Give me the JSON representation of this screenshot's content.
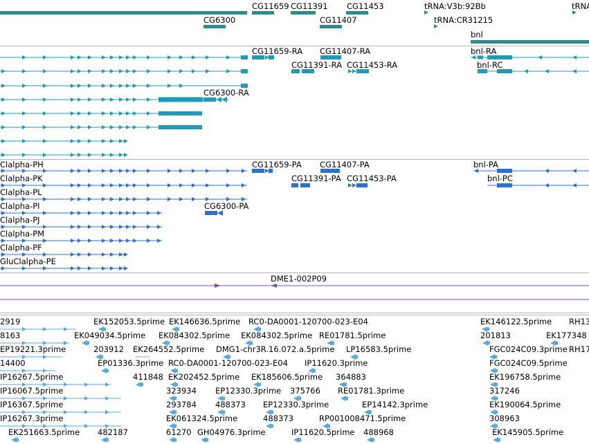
{
  "tracks": {
    "gene_span": {
      "labels": [
        "CG11659",
        "CG11391",
        "CG11453",
        "tRNA:V3b:92Bb",
        "tRNA",
        "CG6300",
        "CG11407",
        "tRNA:CR31215",
        "bnl"
      ]
    },
    "transcripts_rna": {
      "labels": [
        "CG11659-RA",
        "CG11407-RA",
        "bnl-RA",
        "CG11391-RA",
        "CG11453-RA",
        "bnl-RC",
        "CG6300-RA"
      ]
    },
    "proteins": {
      "labels": [
        "Clalpha-PH",
        "CG11659-PA",
        "CG11407-PA",
        "bnl-PA",
        "Clalpha-PK",
        "CG11391-PA",
        "CG11453-PA",
        "bnl-PC",
        "Clalpha-PL",
        "Clalpha-PI",
        "CG6300-PA",
        "Clalpha-PJ",
        "Clalpha-PM",
        "Clalpha-PF",
        "GluClalpha-PE"
      ]
    },
    "clones": {
      "labels": [
        "DME1-002P09"
      ]
    },
    "ests": {
      "labels": [
        "2919",
        "EK152053.5prime",
        "EK146636.5prime",
        "RC0-DA0001-120700-023-E04",
        "EK146122.5prime",
        "RH13",
        "8163",
        "EK049034.5prime",
        "EK084302.5prime",
        "EK084302.5prime",
        "RE01781.5prime",
        "201813",
        "EK177348",
        "EP19221.3prime",
        "203912",
        "EK264552.5prime",
        "DMG1-chr3R.16.072.a.5prime",
        "LP16583.5prime",
        "FGC024C09.3prime",
        "RH17",
        "14400",
        "EP01336.3prime",
        "RC0-DA0001-120700-023-E04",
        "IP11620.3prime",
        "FGC024C09.5prime",
        "IP16267.5prime",
        "411848",
        "EK202452.5prime",
        "EK185606.5prime",
        "364883",
        "EK196758.5prime",
        "IP16067.5prime",
        "323934",
        "EP12330.3prime",
        "375766",
        "RE01781.3prime",
        "317246",
        "IP16367.5prime",
        "293784",
        "488373",
        "EP12330.3prime",
        "EP14142.3prime",
        "EK190064.5prime",
        "IP16267.3prime",
        "EK061324.5prime",
        "488373",
        "RP001008471.5prime",
        "308963",
        "EK251663.5prime",
        "482187",
        "61270",
        "GH04976.3prime",
        "IP11620.5prime",
        "488968",
        "EK145905.5prime"
      ]
    }
  },
  "colors": {
    "gene": "#2e8b8b",
    "rna": "#1f9bb5",
    "protein": "#2e6fd0",
    "clone": "#7b4fa8",
    "est": "#5aa8dc",
    "separator": "#b5b5b5"
  },
  "icons": [
    "strand-arrow-icon",
    "exon-block-icon"
  ]
}
